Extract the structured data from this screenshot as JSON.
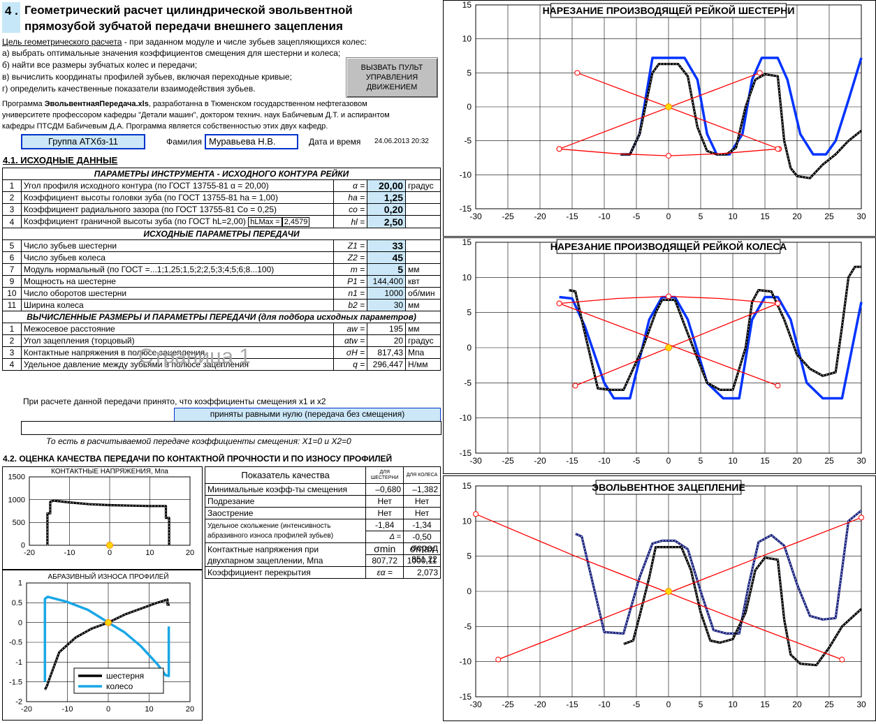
{
  "header": {
    "number": "4 .",
    "title_line1": "Геометрический расчет  цилиндрической эвольвентной",
    "title_line2": "прямозубой зубчатой передачи внешнего зацепления"
  },
  "goal": {
    "label": "Цель геометрического расчета",
    "text": " - при заданном модуле и числе зубьев зацепляющихся колес:",
    "items": [
      "а) выбрать оптимальные значения коэффициентов смещения для шестерни и колеса;",
      "б) найти все размеры зубчатых колес и передачи;",
      "в) вычислить координаты профилей зубьев, включая переходные кривые;",
      "г) определить качественные показатели взаимодействия зубьев."
    ]
  },
  "control_button": {
    "label": "ВЫЗВАТЬ ПУЛЬТ УПРАВЛЕНИЯ ДВИЖЕНИЕМ"
  },
  "program_info": {
    "prefix": "Программа ",
    "name": "ЭвольвентнаяПередача.xls",
    "rest1": ", разработанна  в Тюменском государственном нефтегазовом",
    "line2": "университете профессором кафедры \"Детали машин\", доктором технич. наук Бабичевым Д.Т. и аспирантом",
    "line3": "кафедры ПТСДМ Бабичевым Д.А. Программа является собственностью этих двух кафедр."
  },
  "student": {
    "group": "Группа АТХбз-11",
    "surname_label": "Фамилия",
    "surname": "Муравьева Н.В.",
    "datetime_label": "Дата и время",
    "datetime": "24.06.2013 20:32"
  },
  "section1": {
    "title": "4.1. ИСХОДНЫЕ  ДАННЫЕ",
    "tool_header": "ПАРАМЕТРЫ  ИНСТРУМЕНТА  -  ИСХОДНОГО КОНТУРА РЕЙКИ",
    "tool_rows": [
      {
        "n": "1",
        "name": "Угол профиля исходного контура    (по ГОСТ 13755-81     α = 20,00)",
        "sym": "α =",
        "val": "20,00",
        "unit": "градус"
      },
      {
        "n": "2",
        "name": "Коэффициент высоты головки зуба  (по ГОСТ 13755-81     ha = 1,00)",
        "sym": "ha =",
        "val": "1,25",
        "unit": ""
      },
      {
        "n": "3",
        "name": "Коэффициент радиального зазора    (по ГОСТ 13755-81   Co = 0,25)",
        "sym": "co =",
        "val": "0,20",
        "unit": ""
      },
      {
        "n": "4",
        "name": "Коэффициент граничной высоты зуба (по ГОСТ  hL=2,00)",
        "sym": "hl =",
        "val": "2,50",
        "unit": ""
      }
    ],
    "hlmax_label": "hLMax =",
    "hlmax_value": "2,4579",
    "gear_header": "ИСХОДНЫЕ ПАРАМЕТРЫ  ПЕРЕДАЧИ",
    "gear_rows": [
      {
        "n": "5",
        "name": "Число зубьев шестерни",
        "sym": "Z1 =",
        "val": "33",
        "unit": ""
      },
      {
        "n": "6",
        "name": "Число зубьев колеса",
        "sym": "Z2 =",
        "val": "45",
        "unit": ""
      },
      {
        "n": "7",
        "name": "Модуль нормальный (по ГОСТ =...1;1,25;1,5;2;2,5;3;4;5;6;8...100)",
        "sym": "m =",
        "val": "5",
        "unit": "мм"
      },
      {
        "n": "9",
        "name": "Мощность на шестерне",
        "sym": "P1 =",
        "val": "144,400",
        "unit": "квт"
      },
      {
        "n": "10",
        "name": "Число оборотов шестерни",
        "sym": "n1 =",
        "val": "1000",
        "unit": "об/мин"
      },
      {
        "n": "11",
        "name": "Ширина колеса",
        "sym": "b2 =",
        "val": "30",
        "unit": "мм"
      }
    ],
    "calc_header": "ВЫЧИСЛЕННЫЕ РАЗМЕРЫ И ПАРАМЕТРЫ  ПЕРЕДАЧИ (для подбора исходных параметров)",
    "calc_rows": [
      {
        "n": "1",
        "name": "Межосевое расстояние",
        "sym": "aw =",
        "val": "195",
        "unit": "мм"
      },
      {
        "n": "2",
        "name": "Угол зацепления (торцовый)",
        "sym": "αtw =",
        "val": "20",
        "unit": "градус"
      },
      {
        "n": "3",
        "name": "Контактные напряжения в полюсе зацепления",
        "sym": "σH =",
        "val": "817,43",
        "unit": "Мпа"
      },
      {
        "n": "4",
        "name": "Удельное давление между зубьями в полюсе зацепления",
        "sym": "q =",
        "val": "296,447",
        "unit": "Н/мм"
      }
    ],
    "note_line1": "При расчете данной передачи принято, что коэффициенты смещения x1 и x2",
    "note_box": "приняты равными нулю (передача без смещения)",
    "note_line2": "То есть в расчитываемой передаче коэффициенты смещения:    X1=0  и  X2=0",
    "watermark": "Страница 1"
  },
  "section2": {
    "title": "4.2. ОЦЕНКА КАЧЕСТВА ПЕРЕДАЧИ ПО КОНТАКТНОЙ ПРОЧНОСТИ И ПО ИЗНОСУ ПРОФИЛЕЙ",
    "quality_header": "Показатель качества",
    "col_gear": "ДЛЯ ШЕСТЕРНИ",
    "col_wheel": "ДЛЯ КОЛЕСА",
    "rows": [
      {
        "name": "Минимальные коэфф-ты смещения",
        "a": "–0,680",
        "b": "–1,382"
      },
      {
        "name": "Подрезание",
        "a": "Нет",
        "b": "Нет"
      },
      {
        "name": "Заострение",
        "a": "Нет",
        "b": "Нет"
      }
    ],
    "slip_name1": "Удельное скольжение (интенсивность",
    "slip_name2": "абразивного износа профилей зубьев)",
    "slip_a": "-1,84",
    "slip_b": "-1,34",
    "delta_label": "Δ =",
    "delta_val": "-0,50",
    "contact_name1": "Контактные напряжения при",
    "contact_name2": "двухпарном  зацеплении, Мпа",
    "sig_min": "σmin",
    "sig_max": "σmax",
    "sig_avg": "σсред",
    "v_min": "807,72",
    "v_max": "1000,11",
    "v_avg": "851,22",
    "overlap_name": "Коэффициент перекрытия",
    "overlap_sym": "εα =",
    "overlap_val": "2,073"
  },
  "chart_data": [
    {
      "type": "line",
      "title": "НАРЕЗАНИЕ ПРОИЗВОДЯЩЕЙ РЕЙКОЙ ШЕСТЕРНИ",
      "xlim": [
        -30,
        30
      ],
      "ylim": [
        -15,
        15
      ],
      "xticks": [
        "-30",
        "-25",
        "-20",
        "-15",
        "-10",
        "-5",
        "0",
        "5",
        "10",
        "15",
        "20",
        "25",
        "30"
      ],
      "yticks": [
        "15",
        "10",
        "5",
        "0",
        "-5",
        "-10",
        "-15"
      ],
      "series": [
        {
          "color": "#0033ff",
          "x": [
            -7.5,
            -6,
            -4.5,
            -2.5,
            2.5,
            4.5,
            6,
            7.5,
            9.5,
            11.5,
            13,
            14.5,
            17,
            18.5,
            20.5,
            22.5,
            24.5,
            26,
            28,
            30
          ],
          "y": [
            -7,
            -7,
            -4,
            7.2,
            7.2,
            4,
            -4,
            -7,
            -7,
            -4,
            4,
            7.2,
            7.2,
            4,
            -4,
            -7,
            -7,
            -5,
            1,
            7.2
          ]
        },
        {
          "color": "#000000",
          "x": [
            -7.5,
            -6,
            -4.5,
            -2.5,
            -1.5,
            1.5,
            3,
            4.5,
            6,
            7.5,
            9,
            10.5,
            12,
            13.5,
            15,
            17,
            18,
            19,
            20,
            22,
            24,
            26,
            28,
            30
          ],
          "y": [
            -7,
            -7,
            -4,
            5,
            6.3,
            6.3,
            4.5,
            -3,
            -6.5,
            -7,
            -7,
            -6,
            0,
            4,
            4.8,
            4.5,
            -5,
            -9,
            -10.2,
            -10.5,
            -8.5,
            -7,
            -5,
            -3.5
          ]
        },
        {
          "color": "#ff0000",
          "x": [
            -14.2,
            17.2
          ],
          "y": [
            5,
            -6.2
          ]
        },
        {
          "color": "#ff0000",
          "x": [
            -17,
            14.2
          ],
          "y": [
            -6.2,
            5
          ]
        },
        {
          "color": "#ff0000",
          "x": [
            -17,
            -8,
            0,
            8,
            17
          ],
          "y": [
            -6.2,
            -6.9,
            -7.2,
            -6.9,
            -6.2
          ]
        }
      ],
      "points": [
        {
          "x": 0,
          "y": 0
        }
      ]
    },
    {
      "type": "line",
      "title": "НАРЕЗАНИЕ ПРОИЗВОДЯЩЕЙ РЕЙКОЙ КОЛЕСА",
      "xlim": [
        -30,
        30
      ],
      "ylim": [
        -15,
        15
      ],
      "xticks": [
        "-30",
        "-25",
        "-20",
        "-15",
        "-10",
        "-5",
        "0",
        "5",
        "10",
        "15",
        "20",
        "25",
        "30"
      ],
      "yticks": [
        "15",
        "10",
        "5",
        "0",
        "-5",
        "-10",
        "-15"
      ],
      "series": [
        {
          "color": "#0033ff",
          "x": [
            -17,
            -15,
            -13,
            -10,
            -8.5,
            -6,
            -3,
            -1,
            1,
            3,
            6,
            8.5,
            11,
            13,
            15,
            17,
            19,
            21.5,
            24,
            27,
            30
          ],
          "y": [
            7.2,
            7,
            3,
            -5,
            -7.2,
            -7.2,
            4,
            7.2,
            7.2,
            4,
            -5,
            -7.2,
            -7.2,
            4,
            7.2,
            7.2,
            4,
            -5,
            -7.2,
            -7.2,
            6.5
          ]
        },
        {
          "color": "#000000",
          "x": [
            -15.5,
            -14.5,
            -13,
            -11,
            -9,
            -7,
            -4,
            -2,
            -1,
            1,
            3,
            6,
            8,
            10,
            12,
            13,
            14,
            16,
            18,
            20,
            22,
            24,
            26,
            27,
            28,
            29,
            30
          ],
          "y": [
            8.2,
            8,
            2,
            -5.8,
            -6,
            -6,
            0,
            5,
            6.8,
            6.8,
            2,
            -5,
            -6,
            -6,
            0,
            6.5,
            8.2,
            8,
            4,
            -1,
            -3,
            -4,
            -3.5,
            3,
            10,
            11.5,
            11.5
          ]
        },
        {
          "color": "#ff0000",
          "x": [
            -17,
            17
          ],
          "y": [
            6.3,
            -5.4
          ]
        },
        {
          "color": "#ff0000",
          "x": [
            -14.5,
            17
          ],
          "y": [
            -5.4,
            6.3
          ]
        },
        {
          "color": "#ff0000",
          "x": [
            -17,
            -8,
            0,
            8,
            17
          ],
          "y": [
            6.3,
            7,
            7.3,
            7,
            6.3
          ]
        }
      ],
      "points": [
        {
          "x": 0,
          "y": 0
        }
      ]
    },
    {
      "type": "line",
      "title": "ЭВОЛЬВЕНТНОЕ ЗАЦЕПЛЕНИЕ",
      "xlim": [
        -30,
        30
      ],
      "ylim": [
        -15,
        15
      ],
      "xticks": [
        "-30",
        "-25",
        "-20",
        "-15",
        "-10",
        "-5",
        "0",
        "5",
        "10",
        "15",
        "20",
        "25",
        "30"
      ],
      "yticks": [
        "15",
        "10",
        "5",
        "0",
        "-5",
        "-10",
        "-15"
      ],
      "series": [
        {
          "color": "#1a237e",
          "x": [
            -14.5,
            -13.5,
            -12,
            -10,
            -7,
            -4.5,
            -2.5,
            -1,
            1,
            3,
            5,
            7,
            9,
            11,
            12.5,
            14,
            16,
            18,
            20,
            22,
            24,
            26,
            28,
            30
          ],
          "y": [
            8.2,
            7.8,
            2,
            -5.8,
            -6,
            2,
            6.8,
            7.2,
            7.2,
            6,
            0,
            -5.5,
            -6,
            -6,
            1,
            7,
            8,
            6.5,
            1,
            -3.5,
            -4,
            -3.8,
            10,
            11.5
          ]
        },
        {
          "color": "#000000",
          "x": [
            -7,
            -5.5,
            -4.5,
            -3,
            -2,
            2,
            3.5,
            5,
            6.5,
            8,
            10,
            12,
            13.5,
            15,
            17,
            18,
            19,
            20.5,
            23,
            25,
            27,
            30
          ],
          "y": [
            -7.5,
            -7,
            -3.5,
            2,
            6.3,
            6.3,
            3,
            -3,
            -7,
            -7.3,
            -6.8,
            -3,
            3,
            4.8,
            4.5,
            -4,
            -9,
            -10.3,
            -10.5,
            -8,
            -5,
            -2.5
          ]
        },
        {
          "color": "#ff0000",
          "x": [
            -30,
            -14.5,
            14.5,
            27
          ],
          "y": [
            11,
            5,
            -5.4,
            -9.7
          ]
        },
        {
          "color": "#ff0000",
          "x": [
            -26.5,
            -14.5,
            14.5,
            30
          ],
          "y": [
            -9.7,
            -5.4,
            5,
            10.5
          ]
        }
      ],
      "points": [
        {
          "x": 0,
          "y": 0
        }
      ]
    },
    {
      "type": "line",
      "title": "КОНТАКТНЫЕ   НАПРЯЖЕНИЯ, Мпа",
      "xlim": [
        -20,
        20
      ],
      "ylim": [
        0,
        1500
      ],
      "xticks": [
        "-20",
        "-10",
        "0",
        "10",
        "20"
      ],
      "yticks": [
        "1500",
        "1000",
        "500",
        "0"
      ],
      "series": [
        {
          "color": "#000000",
          "x": [
            -15.5,
            -15.5,
            -14.8,
            -14.8,
            -14,
            -10,
            -5,
            0,
            5,
            10,
            13.5,
            14,
            14,
            14.8,
            14.8
          ],
          "y": [
            0,
            700,
            700,
            950,
            980,
            940,
            900,
            880,
            870,
            860,
            860,
            860,
            600,
            600,
            0
          ]
        }
      ],
      "points": [
        {
          "x": 0,
          "y": 0
        }
      ]
    },
    {
      "type": "line",
      "title": "АБРАЗИВНЫЙ  ИЗНОСА ПРОФИЛЕЙ",
      "xlim": [
        -20,
        20
      ],
      "ylim": [
        -2,
        1
      ],
      "xticks": [
        "-20",
        "-10",
        "0",
        "10",
        "20"
      ],
      "yticks": [
        "1",
        "0.5",
        "0",
        "-0.5",
        "-1",
        "-1.5",
        "-2"
      ],
      "legend": [
        "шестерня",
        "колесо"
      ],
      "series": [
        {
          "name": "шестерня",
          "color": "#000000",
          "x": [
            -15.5,
            -15,
            -14.5,
            -12,
            -8,
            -4,
            0,
            4,
            8,
            12,
            14.5,
            14.5,
            15
          ],
          "y": [
            -1.7,
            -1.6,
            -1.45,
            -0.75,
            -0.38,
            -0.15,
            0,
            0.2,
            0.35,
            0.5,
            0.58,
            0.45,
            0.45
          ]
        },
        {
          "name": "колесо",
          "color": "#1aa7e6",
          "x": [
            -15.5,
            -15.5,
            -14.8,
            -10,
            -5,
            -2,
            0,
            4,
            8,
            12,
            14,
            14.8,
            14.8
          ],
          "y": [
            -1.5,
            0.6,
            0.65,
            0.52,
            0.32,
            0.13,
            0,
            -0.25,
            -0.6,
            -1.05,
            -1.33,
            -1.35,
            -0.1
          ]
        }
      ],
      "points": [
        {
          "x": 0,
          "y": 0
        }
      ]
    }
  ]
}
